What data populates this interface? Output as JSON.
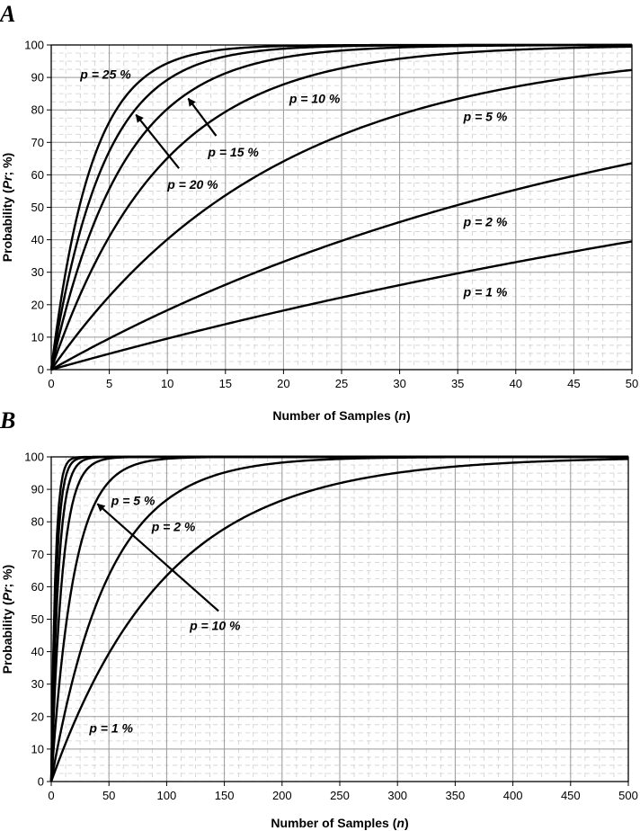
{
  "figure": {
    "letters": [
      "A",
      "B"
    ]
  },
  "chart_data": [
    {
      "panel": "A",
      "type": "line",
      "xlabel_parts": [
        "Number of Samples (",
        "n",
        ")"
      ],
      "ylabel_parts": [
        "Probability (",
        "Pr",
        "; %)"
      ],
      "xlim": [
        0,
        50
      ],
      "ylim": [
        0,
        100
      ],
      "xticks": [
        0,
        5,
        10,
        15,
        20,
        25,
        30,
        35,
        40,
        45,
        50
      ],
      "yticks": [
        0,
        10,
        20,
        30,
        40,
        50,
        60,
        70,
        80,
        90,
        100
      ],
      "grid": true,
      "series": [
        {
          "name": "p = 1 %",
          "p": 0.01,
          "x": [
            0,
            10,
            20,
            30,
            40,
            50
          ],
          "y": [
            0,
            9.6,
            18.2,
            26.0,
            33.1,
            39.5
          ]
        },
        {
          "name": "p = 2 %",
          "p": 0.02,
          "x": [
            0,
            10,
            20,
            30,
            40,
            50
          ],
          "y": [
            0,
            18.3,
            33.2,
            45.5,
            55.4,
            63.6
          ]
        },
        {
          "name": "p = 5 %",
          "p": 0.05,
          "x": [
            0,
            10,
            20,
            30,
            40,
            50
          ],
          "y": [
            0,
            40.1,
            64.2,
            78.5,
            87.1,
            92.3
          ]
        },
        {
          "name": "p = 10 %",
          "p": 0.1,
          "x": [
            0,
            10,
            20,
            30,
            40,
            50
          ],
          "y": [
            0,
            65.1,
            87.8,
            95.8,
            98.5,
            99.5
          ]
        },
        {
          "name": "p = 15 %",
          "p": 0.15,
          "x": [
            0,
            10,
            20,
            30,
            40,
            50
          ],
          "y": [
            0,
            80.3,
            96.1,
            99.2,
            99.8,
            100
          ]
        },
        {
          "name": "p = 20 %",
          "p": 0.2,
          "x": [
            0,
            10,
            20,
            30,
            40,
            50
          ],
          "y": [
            0,
            89.3,
            98.8,
            99.9,
            100,
            100
          ]
        },
        {
          "name": "p = 25 %",
          "p": 0.25,
          "x": [
            0,
            10,
            20,
            30,
            40,
            50
          ],
          "y": [
            0,
            94.4,
            99.7,
            100,
            100,
            100
          ]
        }
      ],
      "annotations": [
        {
          "text": "p = 25 %",
          "x": 2.5,
          "y": 91.0,
          "arrow": null
        },
        {
          "text": "p = 10 %",
          "x": 20.5,
          "y": 83.5,
          "arrow": null
        },
        {
          "text": "p = 5 %",
          "x": 35.5,
          "y": 78.0,
          "arrow": null
        },
        {
          "text": "p = 15 %",
          "x": 13.5,
          "y": 67.0,
          "arrow": {
            "from": [
              14.2,
              72.0
            ],
            "to": [
              11.8,
              83.5
            ]
          }
        },
        {
          "text": "p = 20 %",
          "x": 10.0,
          "y": 57.0,
          "arrow": {
            "from": [
              11.0,
              62.0
            ],
            "to": [
              7.3,
              78.5
            ]
          }
        },
        {
          "text": "p = 2 %",
          "x": 35.5,
          "y": 45.5,
          "arrow": null
        },
        {
          "text": "p = 1 %",
          "x": 35.5,
          "y": 24.0,
          "arrow": null
        }
      ]
    },
    {
      "panel": "B",
      "type": "line",
      "xlabel_parts": [
        "Number of Samples (",
        "n",
        ")"
      ],
      "ylabel_parts": [
        "Probability (",
        "Pr",
        "; %)"
      ],
      "xlim": [
        0,
        500
      ],
      "ylim": [
        0,
        100
      ],
      "xticks": [
        0,
        50,
        100,
        150,
        200,
        250,
        300,
        350,
        400,
        450,
        500
      ],
      "yticks": [
        0,
        10,
        20,
        30,
        40,
        50,
        60,
        70,
        80,
        90,
        100
      ],
      "grid": true,
      "series": [
        {
          "name": "p = 1 %",
          "p": 0.01,
          "x": [
            0,
            100,
            200,
            300,
            400,
            500
          ],
          "y": [
            0,
            63.4,
            86.6,
            95.1,
            98.2,
            99.3
          ]
        },
        {
          "name": "p = 2 %",
          "p": 0.02,
          "x": [
            0,
            100,
            200,
            300,
            400,
            500
          ],
          "y": [
            0,
            86.7,
            98.2,
            99.8,
            100,
            100
          ]
        },
        {
          "name": "p = 5 %",
          "p": 0.05,
          "x": [
            0,
            100,
            200,
            300,
            400,
            500
          ],
          "y": [
            0,
            99.4,
            100,
            100,
            100,
            100
          ]
        },
        {
          "name": "p = 10 %",
          "p": 0.1,
          "x": [
            0,
            100,
            200,
            300,
            400,
            500
          ],
          "y": [
            0,
            100,
            100,
            100,
            100,
            100
          ]
        },
        {
          "name": "",
          "p": 0.15,
          "x": [
            0,
            100,
            200,
            300,
            400,
            500
          ],
          "y": [
            0,
            100,
            100,
            100,
            100,
            100
          ]
        },
        {
          "name": "",
          "p": 0.2,
          "x": [
            0,
            100,
            200,
            300,
            400,
            500
          ],
          "y": [
            0,
            100,
            100,
            100,
            100,
            100
          ]
        },
        {
          "name": "",
          "p": 0.25,
          "x": [
            0,
            100,
            200,
            300,
            400,
            500
          ],
          "y": [
            0,
            100,
            100,
            100,
            100,
            100
          ]
        }
      ],
      "annotations": [
        {
          "text": "p = 5 %",
          "x": 52,
          "y": 86.5,
          "arrow": null
        },
        {
          "text": "p = 2 %",
          "x": 87,
          "y": 78.5,
          "arrow": null
        },
        {
          "text": "p = 10 %",
          "x": 120,
          "y": 48.0,
          "arrow": {
            "from": [
              145,
              52.5
            ],
            "to": [
              40,
              85.5
            ]
          }
        },
        {
          "text": "p = 1 %",
          "x": 33,
          "y": 16.5,
          "arrow": null
        }
      ]
    }
  ]
}
